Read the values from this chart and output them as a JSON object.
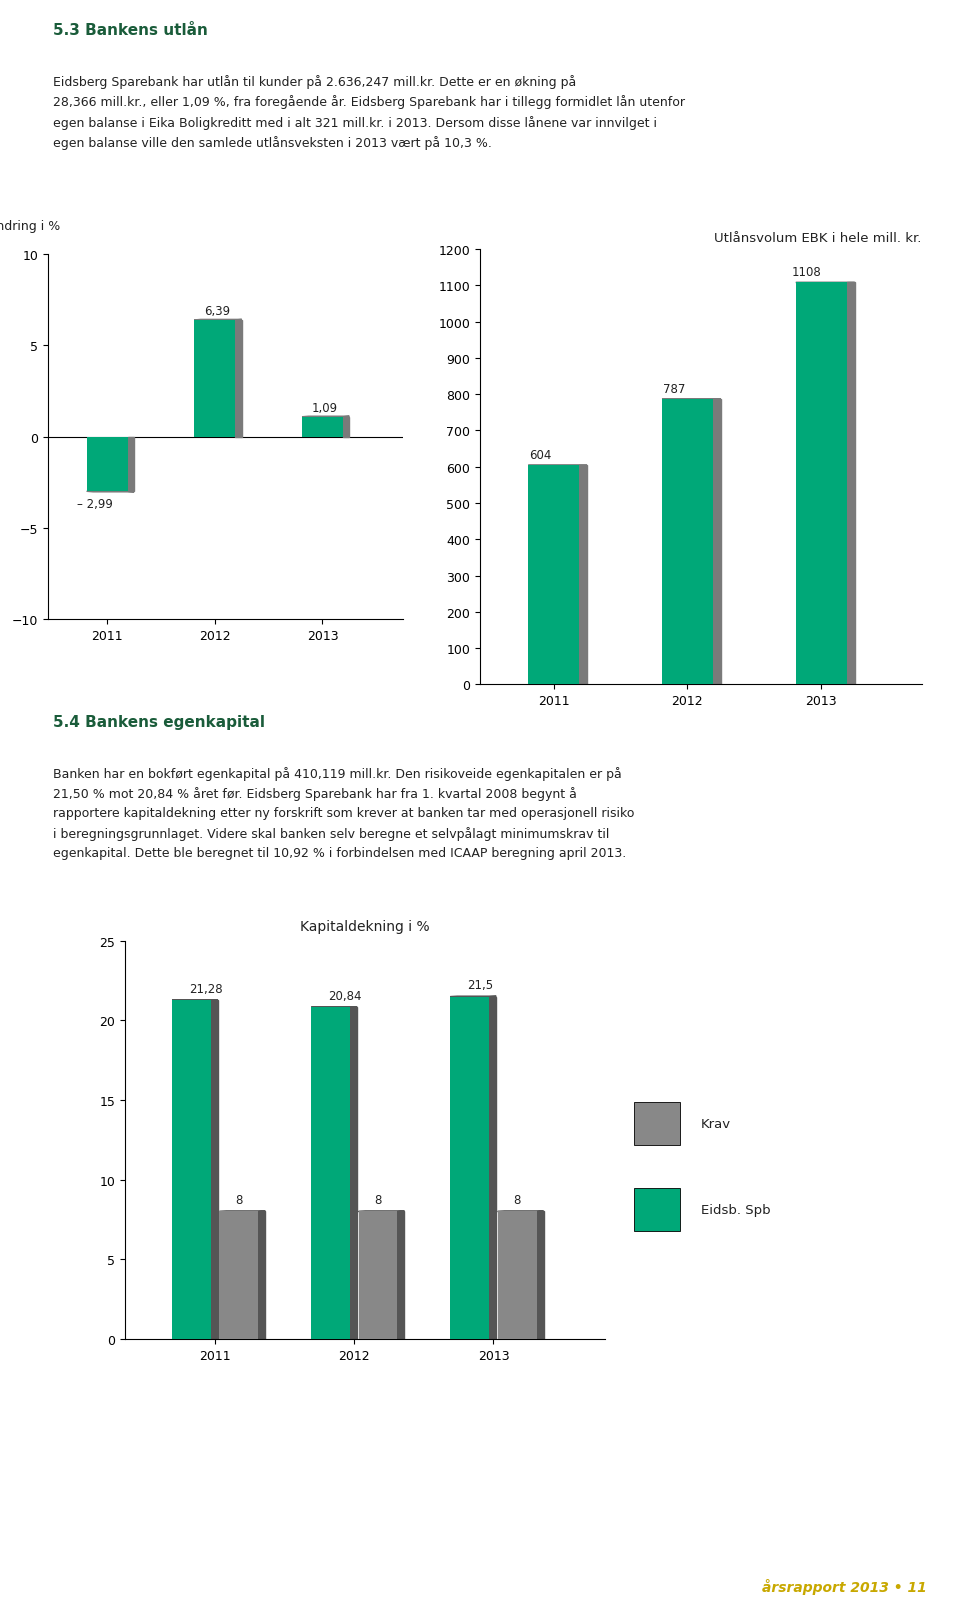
{
  "page_title_1": "5.3 Bankens utlån",
  "page_text_1": "Eidsberg Sparebank har utlån til kunder på 2.636,247 mill.kr. Dette er en økning på\n28,366 mill.kr., eller 1,09 %, fra foregående år. Eidsberg Sparebank har i tillegg formidlet lån utenfor\negen balanse i Eika Boligkreditt med i alt 321 mill.kr. i 2013. Dersom disse lånene var innvilget i\negen balanse ville den samlede utlånsveksten i 2013 vært på 10,3 %.",
  "page_title_2": "5.4 Bankens egenkapital",
  "page_text_2": "Banken har en bokført egenkapital på 410,119 mill.kr. Den risikoveide egenkapitalen er på\n21,50 % mot 20,84 % året før. Eidsberg Sparebank har fra 1. kvartal 2008 begynt å\nrapportere kapitaldekning etter ny forskrift som krever at banken tar med operasjonell risiko\ni beregningsgrunnlaget. Videre skal banken selv beregne et selvpålagt minimumskrav til\negenkapital. Dette ble beregnet til 10,92 % i forbindelsen med ICAAP beregning april 2013.",
  "chart1_title": "Utlånsendring i %",
  "chart1_years": [
    "2011",
    "2012",
    "2013"
  ],
  "chart1_values": [
    -2.99,
    6.39,
    1.09
  ],
  "chart1_ylim": [
    -10,
    10
  ],
  "chart1_yticks": [
    -10,
    -5,
    0,
    5,
    10
  ],
  "chart1_bar_color": "#00a878",
  "chart1_bar_shadow": "#7a7a7a",
  "chart2_title": "Utlånsvolum EBK i hele mill. kr.",
  "chart2_years": [
    "2011",
    "2012",
    "2013"
  ],
  "chart2_values": [
    604,
    787,
    1108
  ],
  "chart2_ylim": [
    0,
    1200
  ],
  "chart2_yticks": [
    0,
    100,
    200,
    300,
    400,
    500,
    600,
    700,
    800,
    900,
    1000,
    1100,
    1200
  ],
  "chart2_bar_color": "#00a878",
  "chart2_bar_shadow": "#7a7a7a",
  "chart3_title": "Kapitaldekning i %",
  "chart3_years": [
    "2011",
    "2012",
    "2013"
  ],
  "chart3_green_values": [
    21.28,
    20.84,
    21.5
  ],
  "chart3_gray_values": [
    8,
    8,
    8
  ],
  "chart3_ylim": [
    0,
    25
  ],
  "chart3_yticks": [
    0,
    5,
    10,
    15,
    20,
    25
  ],
  "chart3_green_color": "#00a878",
  "chart3_gray_color": "#888888",
  "chart3_shadow_color": "#555555",
  "chart3_legend_green": "Eidsb. Spb",
  "chart3_legend_gray": "Krav",
  "background_color": "#ffffff",
  "text_color": "#222222",
  "title_color": "#1a5c3a",
  "footer_text": "årsrapport 2013 • 11",
  "footer_color": "#c8a800"
}
